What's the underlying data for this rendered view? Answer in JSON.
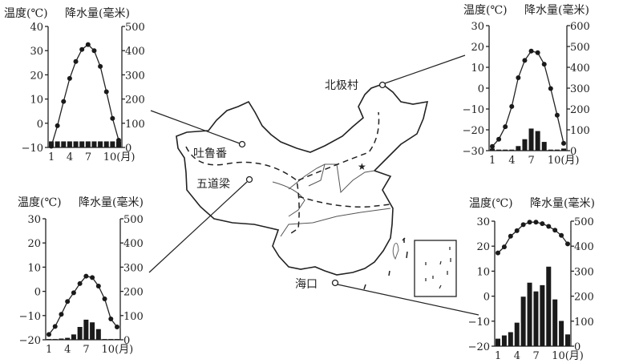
{
  "map": {
    "labels": [
      "北极村",
      "吐鲁番",
      "五道梁",
      "海口"
    ]
  },
  "chart_data": [
    {
      "type": "bar+line",
      "title_left": "温度(℃)",
      "title_right": "降水量(毫米)",
      "x": [
        1,
        2,
        3,
        4,
        5,
        6,
        7,
        8,
        9,
        10,
        11,
        12
      ],
      "xticks": [
        "1",
        "4",
        "7",
        "10(月)"
      ],
      "ylim_left": [
        -10,
        40
      ],
      "yticks_left": [
        "40",
        "30",
        "20",
        "10",
        "0",
        "−10"
      ],
      "ylim_right": [
        0,
        500
      ],
      "yticks_right": [
        "500",
        "400",
        "300",
        "200",
        "100",
        "0"
      ],
      "temperature": [
        -9.5,
        -1,
        9,
        18.5,
        25.5,
        30.5,
        32.5,
        30,
        23.5,
        13,
        2,
        -7
      ],
      "precipitation": [
        25,
        25,
        25,
        25,
        25,
        25,
        25,
        25,
        25,
        25,
        25,
        25
      ]
    },
    {
      "type": "bar+line",
      "title_left": "温度(℃)",
      "title_right": "降水量(毫米)",
      "x": [
        1,
        2,
        3,
        4,
        5,
        6,
        7,
        8,
        9,
        10,
        11,
        12
      ],
      "xticks": [
        "1",
        "4",
        "7",
        "10(月)"
      ],
      "ylim_left": [
        -30,
        30
      ],
      "yticks_left": [
        "30",
        "20",
        "10",
        "0",
        "−10",
        "−20",
        "−30"
      ],
      "ylim_right": [
        0,
        600
      ],
      "yticks_right": [
        "600",
        "500",
        "400",
        "300",
        "200",
        "100",
        "0"
      ],
      "temperature": [
        -28,
        -24.5,
        -18.5,
        -8.8,
        5,
        13.3,
        17.8,
        17,
        11.5,
        -0.2,
        -13,
        -26.5
      ],
      "precipitation": [
        10,
        5,
        5,
        5,
        22,
        55,
        106,
        94,
        42,
        5,
        5,
        10
      ]
    },
    {
      "type": "bar+line",
      "title_left": "温度(℃)",
      "title_right": "降水量(毫米)",
      "x": [
        1,
        2,
        3,
        4,
        5,
        6,
        7,
        8,
        9,
        10,
        11,
        12
      ],
      "xticks": [
        "1",
        "4",
        "7",
        "10(月)"
      ],
      "ylim_left": [
        -20,
        30
      ],
      "yticks_left": [
        "30",
        "20",
        "10",
        "0",
        "−10",
        "−20"
      ],
      "ylim_right": [
        0,
        500
      ],
      "yticks_right": [
        "500",
        "400",
        "300",
        "200",
        "100",
        "0"
      ],
      "temperature": [
        -17.8,
        -14.5,
        -9.5,
        -4.2,
        -0.6,
        3.2,
        6.3,
        5.7,
        2.2,
        -3.1,
        -11.4,
        -14.7
      ],
      "precipitation": [
        3,
        3,
        5,
        8,
        22,
        53,
        83,
        72,
        44,
        3,
        3,
        3
      ]
    },
    {
      "type": "bar+line",
      "title_left": "温度(℃)",
      "title_right": "降水量(毫米)",
      "x": [
        1,
        2,
        3,
        4,
        5,
        6,
        7,
        8,
        9,
        10,
        11,
        12
      ],
      "xticks": [
        "1",
        "4",
        "7",
        "10(月)"
      ],
      "ylim_left": [
        -20,
        30
      ],
      "yticks_left": [
        "30",
        "20",
        "10",
        "0",
        "−10",
        "−20"
      ],
      "ylim_right": [
        0,
        500
      ],
      "yticks_right": [
        "500",
        "400",
        "300",
        "200",
        "100",
        "0"
      ],
      "temperature": [
        17.3,
        19.7,
        24,
        26.2,
        28.6,
        29.6,
        29.6,
        29,
        27.9,
        26.4,
        24.3,
        20.9
      ],
      "precipitation": [
        30,
        43,
        56,
        94,
        198,
        254,
        219,
        244,
        318,
        187,
        101,
        47
      ]
    }
  ]
}
